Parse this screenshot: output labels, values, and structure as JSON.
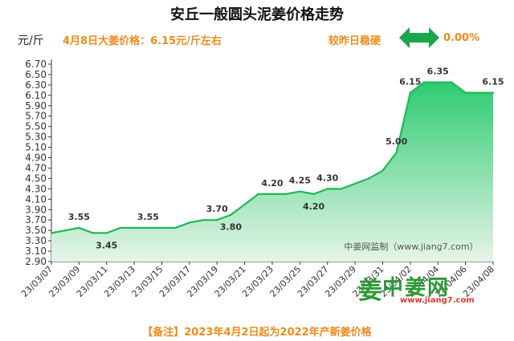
{
  "header": {
    "title": "安丘一般圆头泥姜价格走势",
    "unit": "元/斤",
    "price_info": "4月8日大姜价格：6.15元/斤左右",
    "change_label": "较昨日稳硬",
    "change_value": "0.00%"
  },
  "footer": {
    "note": "【备注】2023年4月2日起为2022年产新姜价格"
  },
  "watermark": "中姜网监制（www.jiang7.com）",
  "logo": {
    "mark": "姜",
    "name": "中姜网",
    "url": "www.jiang7.com"
  },
  "colors": {
    "accent": "#f08a1c",
    "line": "#1db954",
    "area_top": "#2ecc71",
    "area_bottom": "#e6f4e8",
    "arrow": "#1aa64a"
  },
  "chart_data": {
    "type": "area",
    "x": [
      "23/03/07",
      "23/03/08",
      "23/03/09",
      "23/03/10",
      "23/03/11",
      "23/03/12",
      "23/03/13",
      "23/03/14",
      "23/03/15",
      "23/03/16",
      "23/03/17",
      "23/03/18",
      "23/03/19",
      "23/03/20",
      "23/03/21",
      "23/03/22",
      "23/03/23",
      "23/03/24",
      "23/03/25",
      "23/03/26",
      "23/03/27",
      "23/03/28",
      "23/03/29",
      "23/03/30",
      "23/03/31",
      "23/04/01",
      "23/04/02",
      "23/04/03",
      "23/04/04",
      "23/04/05",
      "23/04/06",
      "23/04/07",
      "23/04/08"
    ],
    "values": [
      3.45,
      3.5,
      3.55,
      3.45,
      3.45,
      3.55,
      3.55,
      3.55,
      3.55,
      3.55,
      3.65,
      3.7,
      3.7,
      3.8,
      4.0,
      4.2,
      4.2,
      4.2,
      4.25,
      4.2,
      4.3,
      4.3,
      4.4,
      4.5,
      4.65,
      5.0,
      6.15,
      6.35,
      6.35,
      6.35,
      6.15,
      6.15,
      6.15
    ],
    "x_tick_labels": [
      "23/03/07",
      "23/03/09",
      "23/03/11",
      "23/03/13",
      "23/03/15",
      "23/03/17",
      "23/03/19",
      "23/03/21",
      "23/03/23",
      "23/03/25",
      "23/03/27",
      "23/03/29",
      "23/03/31",
      "23/04/02",
      "23/04/04",
      "23/04/06",
      "23/04/08"
    ],
    "y_ticks": [
      "6.70",
      "6.50",
      "6.30",
      "6.10",
      "5.90",
      "5.70",
      "5.50",
      "5.30",
      "5.10",
      "4.90",
      "4.70",
      "4.50",
      "4.30",
      "4.10",
      "3.90",
      "3.70",
      "3.50",
      "3.30",
      "3.10",
      "2.90"
    ],
    "ylim": [
      2.9,
      6.7
    ],
    "data_labels": [
      {
        "index": 2,
        "text": "3.55"
      },
      {
        "index": 4,
        "text": "3.45"
      },
      {
        "index": 7,
        "text": "3.55"
      },
      {
        "index": 12,
        "text": "3.70"
      },
      {
        "index": 13,
        "text": "3.80"
      },
      {
        "index": 16,
        "text": "4.20"
      },
      {
        "index": 18,
        "text": "4.25"
      },
      {
        "index": 19,
        "text": "4.20"
      },
      {
        "index": 20,
        "text": "4.30"
      },
      {
        "index": 25,
        "text": "5.00"
      },
      {
        "index": 26,
        "text": "6.15"
      },
      {
        "index": 28,
        "text": "6.35"
      },
      {
        "index": 32,
        "text": "6.15"
      }
    ],
    "grid": false
  }
}
